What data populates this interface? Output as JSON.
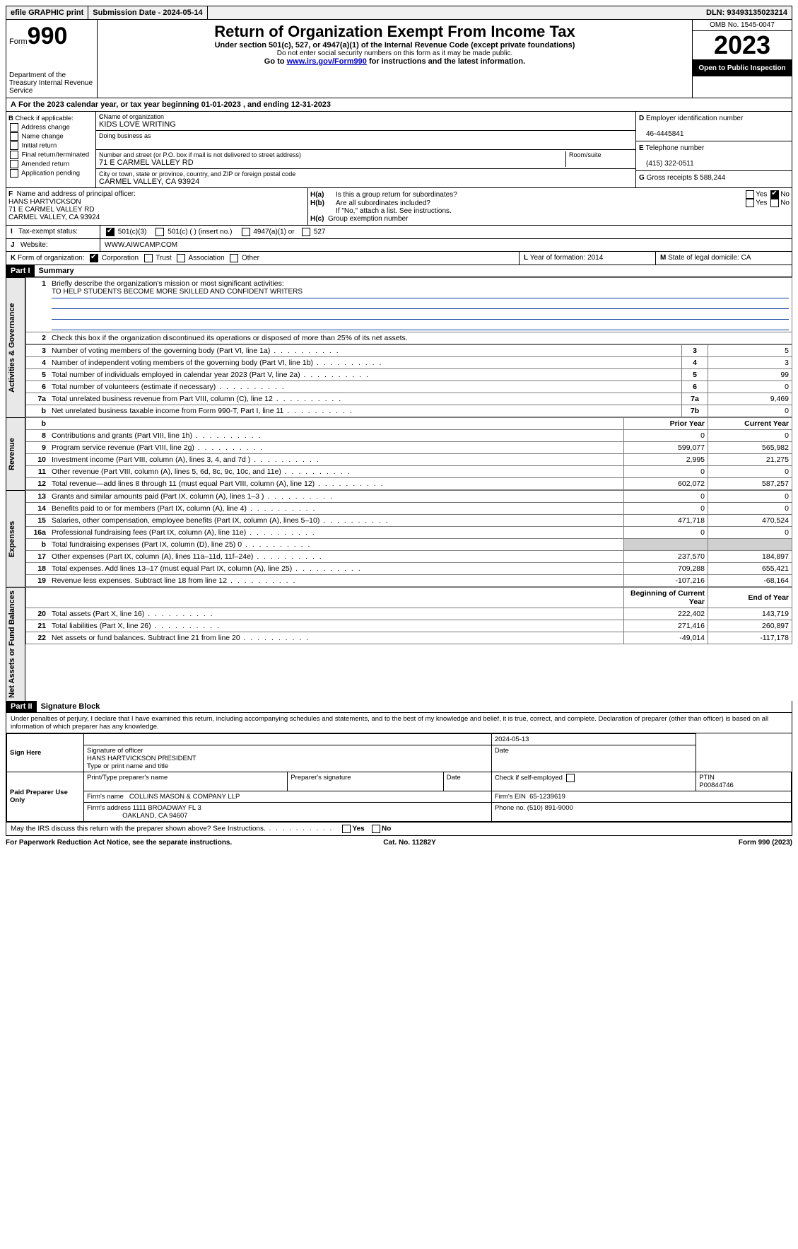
{
  "topbar": {
    "efile": "efile GRAPHIC print",
    "sub_label": "Submission Date - ",
    "sub_date": "2024-05-14",
    "dln_label": "DLN: ",
    "dln": "93493135023214"
  },
  "header": {
    "form_word": "Form",
    "form_no": "990",
    "dept": "Department of the Treasury Internal Revenue Service",
    "title": "Return of Organization Exempt From Income Tax",
    "sub1": "Under section 501(c), 527, or 4947(a)(1) of the Internal Revenue Code (except private foundations)",
    "sub2": "Do not enter social security numbers on this form as it may be made public.",
    "sub3_pre": "Go to ",
    "sub3_link": "www.irs.gov/Form990",
    "sub3_post": " for instructions and the latest information.",
    "omb": "OMB No. 1545-0047",
    "year": "2023",
    "inspect": "Open to Public Inspection"
  },
  "taxyear": "For the 2023 calendar year, or tax year beginning 01-01-2023   , and ending 12-31-2023",
  "B": {
    "label": "Check if applicable:",
    "items": [
      "Address change",
      "Name change",
      "Initial return",
      "Final return/terminated",
      "Amended return",
      "Application pending"
    ]
  },
  "C": {
    "name_label": "Name of organization",
    "name": "KIDS LOVE WRITING",
    "dba_label": "Doing business as",
    "addr_label": "Number and street (or P.O. box if mail is not delivered to street address)",
    "room_label": "Room/suite",
    "addr": "71 E CARMEL VALLEY RD",
    "city_label": "City or town, state or province, country, and ZIP or foreign postal code",
    "city": "CARMEL VALLEY, CA  93924"
  },
  "D": {
    "label": "Employer identification number",
    "val": "46-4445841"
  },
  "E": {
    "label": "Telephone number",
    "val": "(415) 322-0511"
  },
  "G": {
    "label": "Gross receipts $ ",
    "val": "588,244"
  },
  "F": {
    "label": "Name and address of principal officer:",
    "name": "HANS HARTVICKSON",
    "l1": "71 E CARMEL VALLEY RD",
    "l2": "CARMEL VALLEY, CA  93924"
  },
  "H": {
    "a": "Is this a group return for subordinates?",
    "b": "Are all subordinates included?",
    "note": "If \"No,\" attach a list. See instructions.",
    "c": "Group exemption number"
  },
  "I": {
    "label": "Tax-exempt status:",
    "opt1": "501(c)(3)",
    "opt2": "501(c) (  ) (insert no.)",
    "opt3": "4947(a)(1) or",
    "opt4": "527"
  },
  "J": {
    "label": "Website:",
    "val": "WWW.AIWCAMP.COM"
  },
  "K": {
    "label": "Form of organization:",
    "opts": [
      "Corporation",
      "Trust",
      "Association",
      "Other"
    ]
  },
  "L": {
    "label": "Year of formation: ",
    "val": "2014"
  },
  "M": {
    "label": "State of legal domicile: ",
    "val": "CA"
  },
  "part1": {
    "header": "Part I",
    "title": "Summary",
    "l1": "Briefly describe the organization's mission or most significant activities:",
    "mission": "TO HELP STUDENTS BECOME MORE SKILLED AND CONFIDENT WRITERS",
    "l2": "Check this box      if the organization discontinued its operations or disposed of more than 25% of its net assets.",
    "side": {
      "gov": "Activities & Governance",
      "rev": "Revenue",
      "exp": "Expenses",
      "net": "Net Assets or Fund Balances"
    },
    "rows_gov": [
      {
        "n": "3",
        "d": "Number of voting members of the governing body (Part VI, line 1a)",
        "rn": "3",
        "v": "5"
      },
      {
        "n": "4",
        "d": "Number of independent voting members of the governing body (Part VI, line 1b)",
        "rn": "4",
        "v": "3"
      },
      {
        "n": "5",
        "d": "Total number of individuals employed in calendar year 2023 (Part V, line 2a)",
        "rn": "5",
        "v": "99"
      },
      {
        "n": "6",
        "d": "Total number of volunteers (estimate if necessary)",
        "rn": "6",
        "v": "0"
      },
      {
        "n": "7a",
        "d": "Total unrelated business revenue from Part VIII, column (C), line 12",
        "rn": "7a",
        "v": "9,469"
      },
      {
        "n": "b",
        "d": "Net unrelated business taxable income from Form 990-T, Part I, line 11",
        "rn": "7b",
        "v": "0"
      }
    ],
    "hdr_prior": "Prior Year",
    "hdr_curr": "Current Year",
    "rows_rev": [
      {
        "n": "8",
        "d": "Contributions and grants (Part VIII, line 1h)",
        "p": "0",
        "c": "0"
      },
      {
        "n": "9",
        "d": "Program service revenue (Part VIII, line 2g)",
        "p": "599,077",
        "c": "565,982"
      },
      {
        "n": "10",
        "d": "Investment income (Part VIII, column (A), lines 3, 4, and 7d )",
        "p": "2,995",
        "c": "21,275"
      },
      {
        "n": "11",
        "d": "Other revenue (Part VIII, column (A), lines 5, 6d, 8c, 9c, 10c, and 11e)",
        "p": "0",
        "c": "0"
      },
      {
        "n": "12",
        "d": "Total revenue—add lines 8 through 11 (must equal Part VIII, column (A), line 12)",
        "p": "602,072",
        "c": "587,257"
      }
    ],
    "rows_exp": [
      {
        "n": "13",
        "d": "Grants and similar amounts paid (Part IX, column (A), lines 1–3 )",
        "p": "0",
        "c": "0"
      },
      {
        "n": "14",
        "d": "Benefits paid to or for members (Part IX, column (A), line 4)",
        "p": "0",
        "c": "0"
      },
      {
        "n": "15",
        "d": "Salaries, other compensation, employee benefits (Part IX, column (A), lines 5–10)",
        "p": "471,718",
        "c": "470,524"
      },
      {
        "n": "16a",
        "d": "Professional fundraising fees (Part IX, column (A), line 11e)",
        "p": "0",
        "c": "0"
      },
      {
        "n": "b",
        "d": "Total fundraising expenses (Part IX, column (D), line 25) 0",
        "p": "",
        "c": "",
        "shade": true
      },
      {
        "n": "17",
        "d": "Other expenses (Part IX, column (A), lines 11a–11d, 11f–24e)",
        "p": "237,570",
        "c": "184,897"
      },
      {
        "n": "18",
        "d": "Total expenses. Add lines 13–17 (must equal Part IX, column (A), line 25)",
        "p": "709,288",
        "c": "655,421"
      },
      {
        "n": "19",
        "d": "Revenue less expenses. Subtract line 18 from line 12",
        "p": "-107,216",
        "c": "-68,164"
      }
    ],
    "hdr_begin": "Beginning of Current Year",
    "hdr_end": "End of Year",
    "rows_net": [
      {
        "n": "20",
        "d": "Total assets (Part X, line 16)",
        "p": "222,402",
        "c": "143,719"
      },
      {
        "n": "21",
        "d": "Total liabilities (Part X, line 26)",
        "p": "271,416",
        "c": "260,897"
      },
      {
        "n": "22",
        "d": "Net assets or fund balances. Subtract line 21 from line 20",
        "p": "-49,014",
        "c": "-117,178"
      }
    ]
  },
  "part2": {
    "header": "Part II",
    "title": "Signature Block",
    "penalty": "Under penalties of perjury, I declare that I have examined this return, including accompanying schedules and statements, and to the best of my knowledge and belief, it is true, correct, and complete. Declaration of preparer (other than officer) is based on all information of which preparer has any knowledge.",
    "sign_here": "Sign Here",
    "sig_officer_lbl": "Signature of officer",
    "sig_date": "2024-05-13",
    "date_lbl": "Date",
    "officer": "HANS HARTVICKSON PRESIDENT",
    "officer_lbl": "Type or print name and title",
    "paid": "Paid Preparer Use Only",
    "p_name_lbl": "Print/Type preparer's name",
    "p_sig_lbl": "Preparer's signature",
    "p_date_lbl": "Date",
    "p_check_lbl": "Check      if self-employed",
    "ptin_lbl": "PTIN",
    "ptin": "P00844746",
    "firm_name_lbl": "Firm's name",
    "firm_name": "COLLINS MASON & COMPANY LLP",
    "firm_ein_lbl": "Firm's EIN",
    "firm_ein": "65-1239619",
    "firm_addr_lbl": "Firm's address",
    "firm_addr1": "1111 BROADWAY FL 3",
    "firm_addr2": "OAKLAND, CA  94607",
    "phone_lbl": "Phone no.",
    "phone": "(510) 891-9000",
    "discuss": "May the IRS discuss this return with the preparer shown above? See Instructions."
  },
  "footer": {
    "l": "For Paperwork Reduction Act Notice, see the separate instructions.",
    "m": "Cat. No. 11282Y",
    "r_pre": "Form ",
    "r_form": "990",
    "r_post": " (2023)"
  },
  "yesno": {
    "yes": "Yes",
    "no": "No"
  }
}
